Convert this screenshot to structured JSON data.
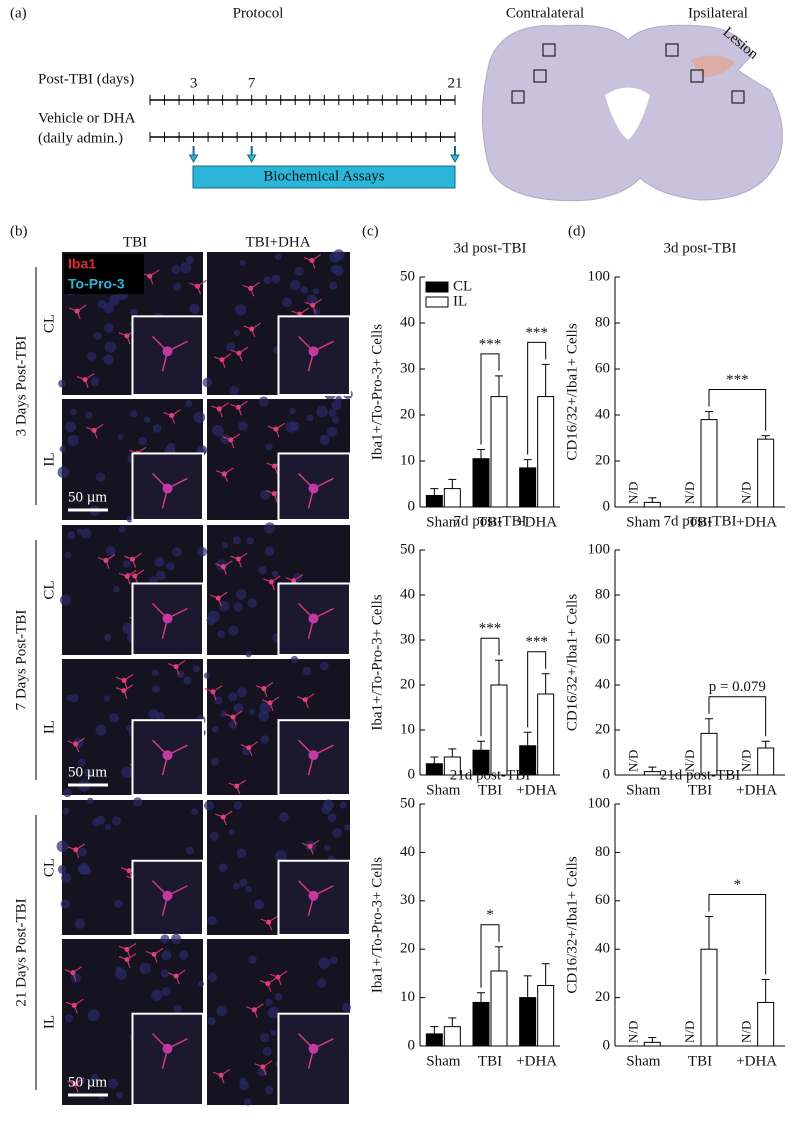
{
  "panel_labels": [
    "(a)",
    "(b)",
    "(c)",
    "(d)"
  ],
  "protocol": {
    "title": "Protocol",
    "rows": [
      "Post-TBI (days)",
      "Vehicle or DHA",
      "(daily admin.)"
    ],
    "days": [
      3,
      7,
      21
    ],
    "assay": "Biochemical Assays",
    "brain": {
      "left": "Contralateral",
      "right": "Ipsilateral",
      "lesion": "Lesion"
    }
  },
  "micrographs": {
    "columns": [
      "TBI",
      "TBI+DHA"
    ],
    "stains": [
      "Iba1",
      "To-Pro-3"
    ],
    "rows": [
      "3 Days Post-TBI",
      "7 Days Post-TBI",
      "21 Days Post-TBI"
    ],
    "regions": [
      "CL",
      "IL",
      "CL",
      "IL",
      "CL",
      "IL"
    ],
    "scale_bars": [
      "50 µm",
      "50 µm",
      "50 µm"
    ]
  },
  "chart_data": [
    {
      "type": "bar",
      "title": "3d post-TBI",
      "y_label": "Iba1+/To-Pro-3+  Cells",
      "categories": [
        "Sham",
        "TBI",
        "+DHA"
      ],
      "series": [
        {
          "name": "CL",
          "color": "#000000",
          "values": [
            2.5,
            10.5,
            8.5
          ],
          "errors": [
            1.5,
            2,
            1.8
          ]
        },
        {
          "name": "IL",
          "color": "#ffffff",
          "values": [
            4,
            24,
            24
          ],
          "errors": [
            2,
            4.5,
            7
          ]
        }
      ],
      "ylim": [
        0,
        50
      ],
      "yticks": [
        0,
        10,
        20,
        30,
        40,
        50
      ],
      "legend": "upper left",
      "annotations": [
        "***",
        "***"
      ]
    },
    {
      "type": "bar",
      "title": "7d post-TBI",
      "y_label": "Iba1+/To-Pro-3+  Cells",
      "categories": [
        "Sham",
        "TBI",
        "+DHA"
      ],
      "series": [
        {
          "color": "#000000",
          "values": [
            2.5,
            5.5,
            6.5
          ],
          "errors": [
            1.5,
            2,
            3
          ]
        },
        {
          "color": "#ffffff",
          "values": [
            4,
            20,
            18
          ],
          "errors": [
            1.8,
            5.5,
            4.5
          ]
        }
      ],
      "ylim": [
        0,
        50
      ],
      "yticks": [
        0,
        10,
        20,
        30,
        40,
        50
      ],
      "annotations": [
        "***",
        "***"
      ]
    },
    {
      "type": "bar",
      "title": "21d post-TBI",
      "y_label": "Iba1+/To-Pro-3+  Cells",
      "categories": [
        "Sham",
        "TBI",
        "+DHA"
      ],
      "series": [
        {
          "color": "#000000",
          "values": [
            2.5,
            9,
            10
          ],
          "errors": [
            1.5,
            2,
            4.5
          ]
        },
        {
          "color": "#ffffff",
          "values": [
            4,
            15.5,
            12.5
          ],
          "errors": [
            1.8,
            5,
            4.5
          ]
        }
      ],
      "ylim": [
        0,
        50
      ],
      "yticks": [
        0,
        10,
        20,
        30,
        40,
        50
      ],
      "annotations": [
        "*"
      ]
    },
    {
      "type": "bar",
      "title": "3d post-TBI",
      "y_label": "CD16/32+/Iba1+  Cells",
      "categories": [
        "Sham",
        "TBI",
        "+DHA"
      ],
      "series": [
        {
          "color": "#000000",
          "values": [
            null,
            null,
            null
          ],
          "value_labels": [
            "N/D",
            "N/D",
            "N/D"
          ]
        },
        {
          "color": "#ffffff",
          "values": [
            2,
            38,
            29.5
          ],
          "errors": [
            2,
            3.5,
            1.5
          ]
        }
      ],
      "ylim": [
        0,
        100
      ],
      "yticks": [
        0,
        20,
        40,
        60,
        80,
        100
      ],
      "annotations": [
        "***"
      ]
    },
    {
      "type": "bar",
      "title": "7d post-TBI",
      "y_label": "CD16/32+/Iba1+  Cells",
      "categories": [
        "Sham",
        "TBI",
        "+DHA"
      ],
      "series": [
        {
          "color": "#000000",
          "values": [
            null,
            null,
            null
          ],
          "value_labels": [
            "N/D",
            "N/D",
            "N/D"
          ]
        },
        {
          "color": "#ffffff",
          "values": [
            1.5,
            18.5,
            12
          ],
          "errors": [
            2,
            6.5,
            3
          ]
        }
      ],
      "ylim": [
        0,
        100
      ],
      "yticks": [
        0,
        20,
        40,
        60,
        80,
        100
      ],
      "annotations": [
        "p = 0.079"
      ]
    },
    {
      "type": "bar",
      "title": "21d post-TBI",
      "y_label": "CD16/32+/Iba1+  Cells",
      "categories": [
        "Sham",
        "TBI",
        "+DHA"
      ],
      "series": [
        {
          "color": "#000000",
          "values": [
            null,
            null,
            null
          ],
          "value_labels": [
            "N/D",
            "N/D",
            "N/D"
          ]
        },
        {
          "color": "#ffffff",
          "values": [
            1.5,
            40,
            18
          ],
          "errors": [
            2,
            13.5,
            9.5
          ]
        }
      ],
      "ylim": [
        0,
        100
      ],
      "yticks": [
        0,
        20,
        40,
        60,
        80,
        100
      ],
      "annotations": [
        "*"
      ]
    }
  ]
}
